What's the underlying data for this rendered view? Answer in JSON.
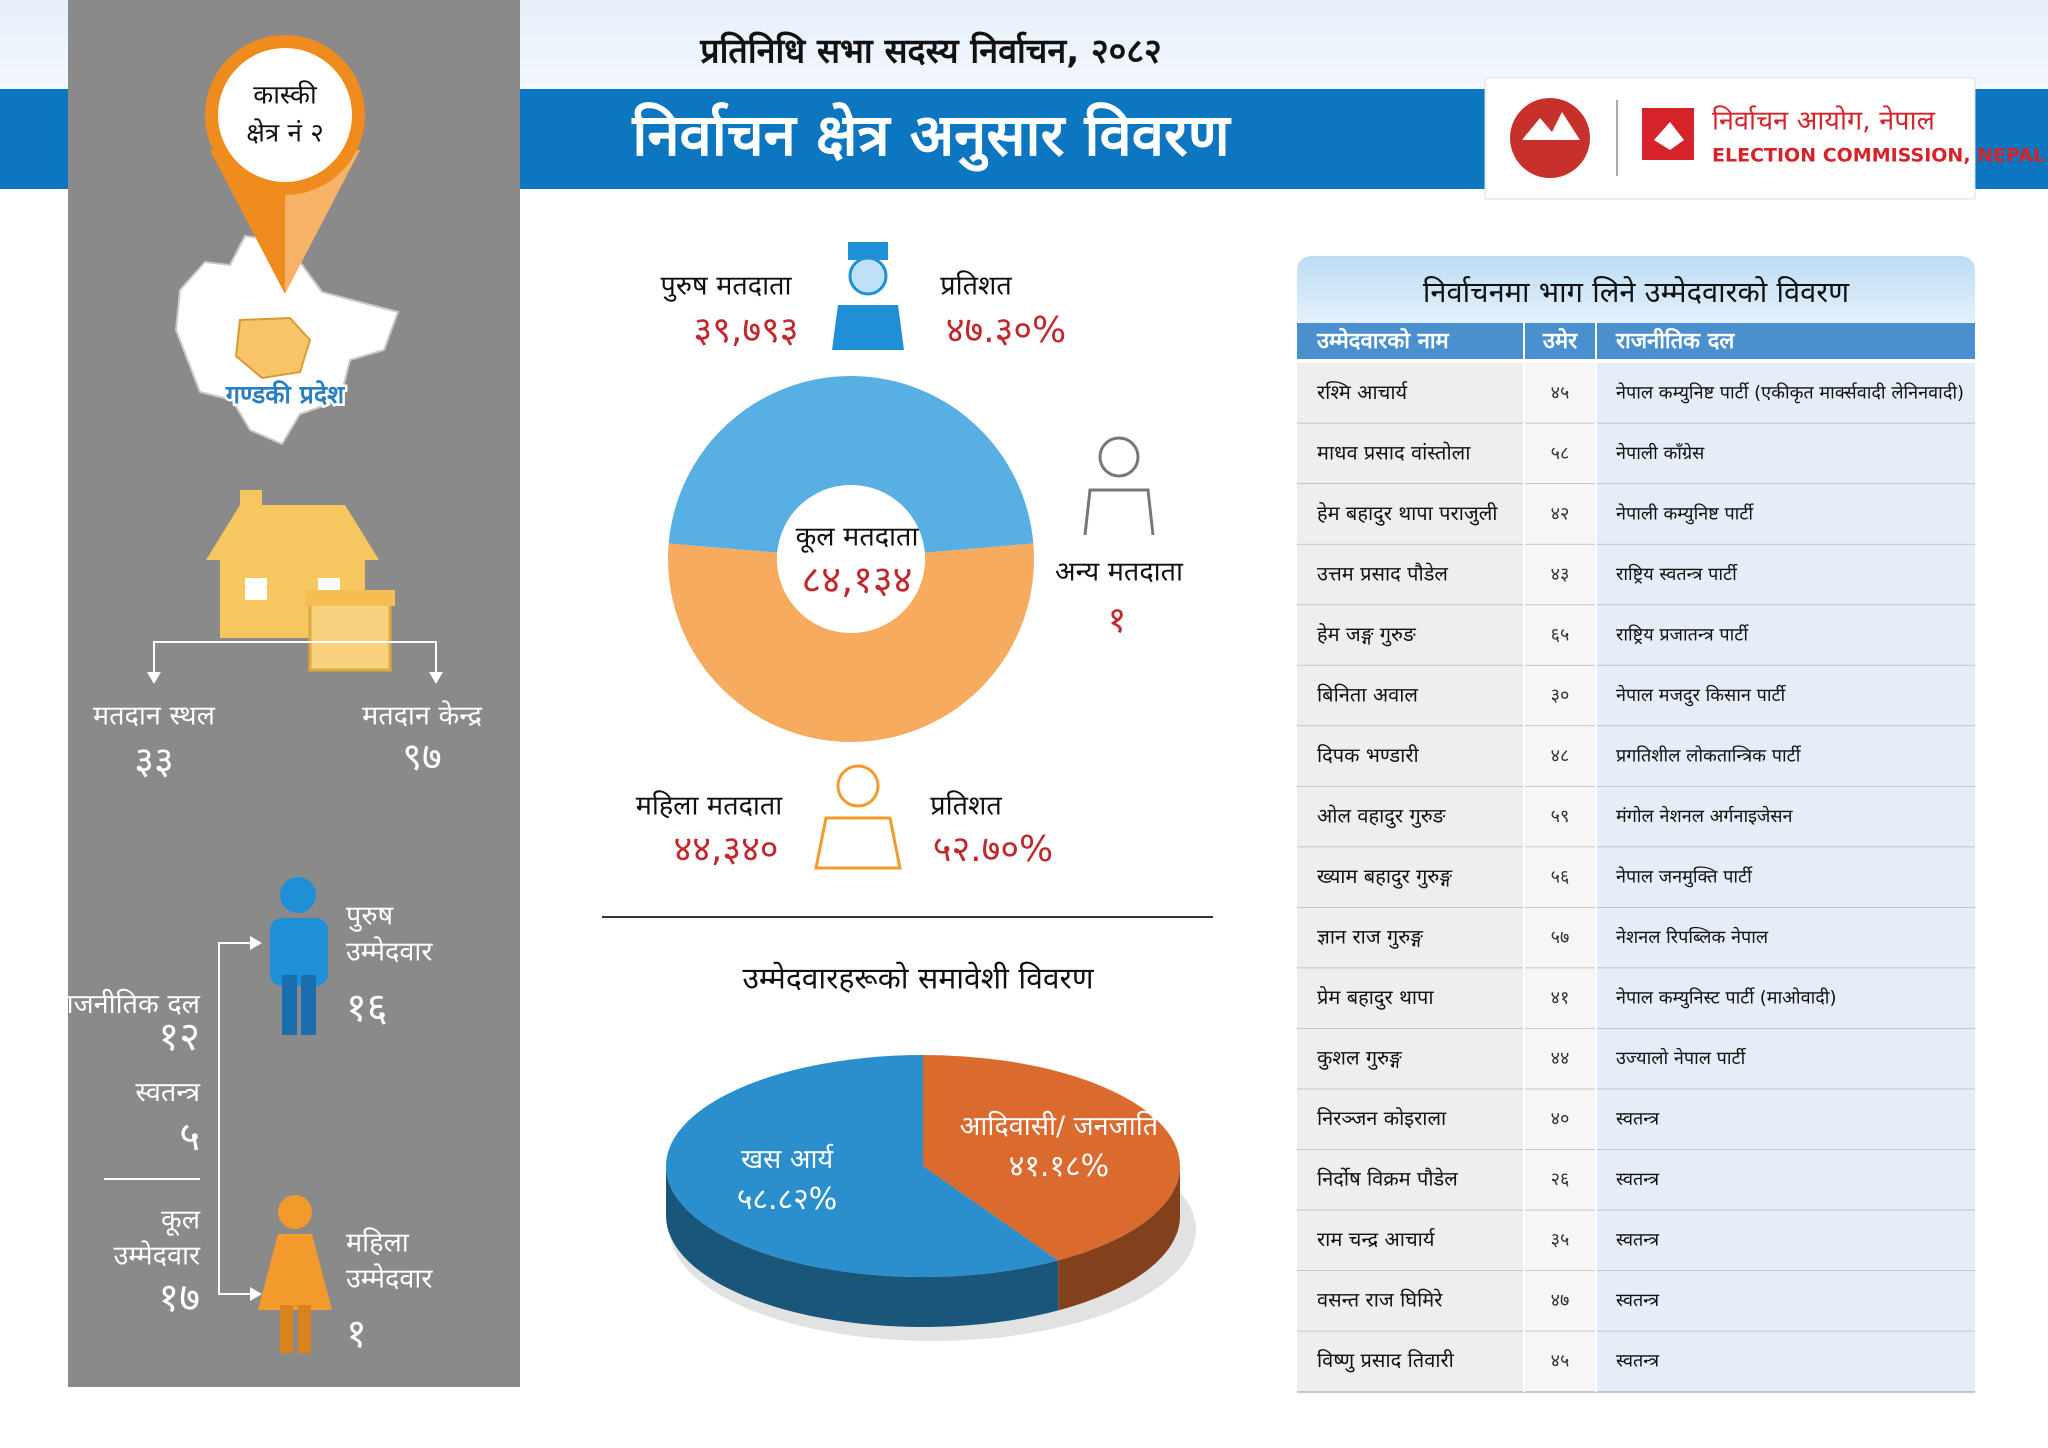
{
  "header": {
    "subtitle": "प्रतिनिधि सभा सदस्य निर्वाचन, २०८२",
    "title": "निर्वाचन क्षेत्र अनुसार विवरण",
    "commission_name": "निर्वाचन आयोग, नेपाल",
    "commission_name_en": "ELECTION COMMISSION, NEPAL"
  },
  "location": {
    "district": "कास्की",
    "constituency": "क्षेत्र नं २",
    "province": "गण्डकी प्रदेश"
  },
  "polling": {
    "places_label": "मतदान स्थल",
    "places": "३३",
    "centers_label": "मतदान केन्द्र",
    "centers": "९७"
  },
  "candidates": {
    "party_label": "राजनीतिक दल",
    "party": "१२",
    "independent_label": "स्वतन्त्र",
    "independent": "५",
    "total_label": "कूल उम्मेदवार",
    "total": "१७",
    "male_label": "पुरुष उम्मेदवार",
    "male": "१६",
    "female_label": "महिला उम्मेदवार",
    "female": "१"
  },
  "chart_data": [
    {
      "type": "donut",
      "title": "कूल मतदाता",
      "total": 84134,
      "total_label": "८४,१३४",
      "categories": [
        "पुरुष मतदाता",
        "महिला मतदाता",
        "अन्य मतदाता"
      ],
      "values": [
        39793,
        44340,
        1
      ],
      "value_labels": [
        "३९,७९३",
        "४४,३४०",
        "१"
      ],
      "colors": [
        "#58afe3",
        "#f6ab5e",
        "#9a9a9a"
      ],
      "share_heading": "प्रतिशत",
      "shares": [
        47.3,
        52.7,
        null
      ],
      "share_labels": [
        "४७.३०%",
        "५२.७०%",
        null
      ]
    },
    {
      "type": "pie3d",
      "title": "उम्मेदवारहरूको समावेशी विवरण",
      "categories": [
        "खस आर्य",
        "आदिवासी/ जनजाति"
      ],
      "values": [
        58.82,
        41.18
      ],
      "value_labels": [
        "५८.८२%",
        "४१.१८%"
      ],
      "colors": [
        "#2a8fcc",
        "#db6a2f"
      ]
    }
  ],
  "table": {
    "title": "निर्वाचनमा भाग लिने उम्मेदवारको विवरण",
    "headers": [
      "उम्मेदवारको नाम",
      "उमेर",
      "राजनीतिक दल"
    ],
    "rows": [
      [
        "रश्मि आचार्य",
        "४५",
        "नेपाल कम्युनिष्ट पार्टी (एकीकृत मार्क्सवादी लेनिनवादी)"
      ],
      [
        "माधव प्रसाद वांस्तोला",
        "५८",
        "नेपाली काँग्रेस"
      ],
      [
        "हेम बहादुर थापा पराजुली",
        "४२",
        "नेपाली कम्युनिष्ट पार्टी"
      ],
      [
        "उत्तम प्रसाद पौडेल",
        "४३",
        "राष्ट्रिय स्वतन्त्र पार्टी"
      ],
      [
        "हेम जङ्ग गुरुङ",
        "६५",
        "राष्ट्रिय प्रजातन्त्र पार्टी"
      ],
      [
        "बिनिता अवाल",
        "३०",
        "नेपाल मजदुर किसान पार्टी"
      ],
      [
        "दिपक भण्डारी",
        "४८",
        "प्रगतिशील लोकतान्त्रिक पार्टी"
      ],
      [
        "ओल वहादुर गुरुङ",
        "५९",
        "मंगोल नेशनल अर्गनाइजेसन"
      ],
      [
        "ख्याम बहादुर गुरुङ्ग",
        "५६",
        "नेपाल जनमुक्ति पार्टी"
      ],
      [
        "ज्ञान राज गुरुङ्ग",
        "५७",
        "नेशनल रिपब्लिक नेपाल"
      ],
      [
        "प्रेम बहादुर थापा",
        "४१",
        "नेपाल कम्युनिस्ट पार्टी (माओवादी)"
      ],
      [
        "कुशल गुरुङ्ग",
        "४४",
        "उज्यालो नेपाल पार्टी"
      ],
      [
        "निरञ्जन कोइराला",
        "४०",
        "स्वतन्त्र"
      ],
      [
        "निर्दोष विक्रम पौडेल",
        "२६",
        "स्वतन्त्र"
      ],
      [
        "राम चन्द्र आचार्य",
        "३५",
        "स्वतन्त्र"
      ],
      [
        "वसन्त राज घिमिरे",
        "४७",
        "स्वतन्त्र"
      ],
      [
        "विष्णु प्रसाद तिवारी",
        "४५",
        "स्वतन्त्र"
      ]
    ]
  }
}
